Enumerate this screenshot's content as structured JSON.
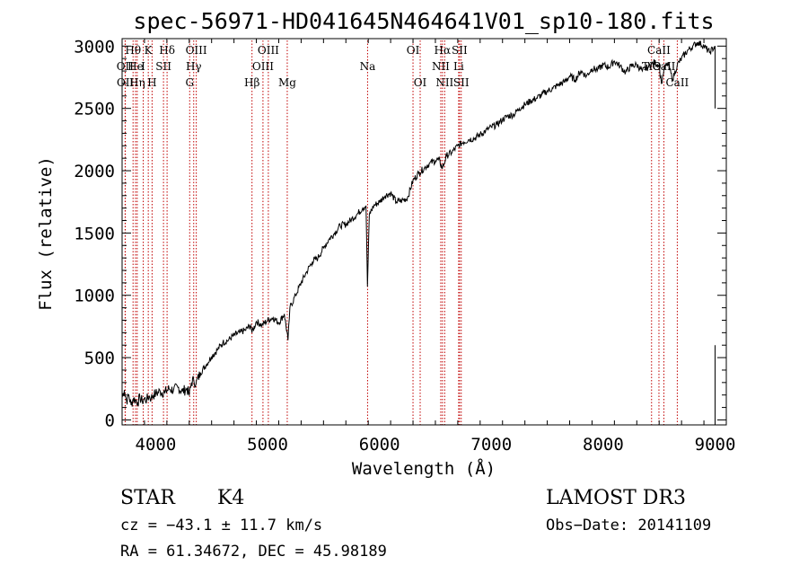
{
  "chart_data": {
    "type": "line",
    "title": "spec-56971-HD041645N464641V01_sp10-180.fits",
    "xlabel": "Wavelength (Å)",
    "ylabel": "Flux (relative)",
    "xlim": [
      3700,
      9100
    ],
    "ylim": [
      -40,
      3060
    ],
    "xticks": [
      4000,
      5000,
      6000,
      7000,
      8000,
      9000
    ],
    "yticks": [
      0,
      500,
      1000,
      1500,
      2000,
      2500,
      3000
    ],
    "series": [
      {
        "name": "spectrum",
        "x": [
          3700,
          3720,
          3740,
          3760,
          3780,
          3800,
          3820,
          3840,
          3860,
          3880,
          3900,
          3920,
          3940,
          3960,
          3980,
          4000,
          4040,
          4080,
          4120,
          4160,
          4200,
          4240,
          4280,
          4300,
          4320,
          4340,
          4360,
          4400,
          4450,
          4500,
          4550,
          4600,
          4650,
          4700,
          4750,
          4800,
          4850,
          4861,
          4900,
          4950,
          5000,
          5050,
          5100,
          5150,
          5183,
          5200,
          5250,
          5300,
          5350,
          5400,
          5450,
          5500,
          5550,
          5600,
          5650,
          5700,
          5750,
          5800,
          5850,
          5880,
          5893,
          5910,
          5950,
          6000,
          6050,
          6100,
          6150,
          6200,
          6250,
          6300,
          6350,
          6400,
          6450,
          6500,
          6530,
          6563,
          6600,
          6650,
          6700,
          6750,
          6800,
          6850,
          6900,
          6950,
          7000,
          7050,
          7100,
          7150,
          7200,
          7250,
          7300,
          7350,
          7400,
          7450,
          7500,
          7550,
          7600,
          7650,
          7700,
          7750,
          7800,
          7850,
          7900,
          7950,
          8000,
          8050,
          8100,
          8150,
          8200,
          8250,
          8300,
          8350,
          8400,
          8450,
          8498,
          8520,
          8542,
          8580,
          8620,
          8662,
          8700,
          8750,
          8800,
          8850,
          8900,
          8950,
          9000,
          9000
        ],
        "values": [
          180,
          240,
          150,
          200,
          120,
          170,
          160,
          140,
          180,
          150,
          170,
          160,
          190,
          175,
          200,
          210,
          230,
          220,
          250,
          240,
          260,
          230,
          250,
          200,
          300,
          320,
          290,
          380,
          440,
          510,
          560,
          620,
          640,
          680,
          700,
          720,
          760,
          700,
          790,
          760,
          800,
          820,
          780,
          850,
          640,
          900,
          1000,
          1100,
          1190,
          1270,
          1300,
          1380,
          1450,
          1500,
          1560,
          1570,
          1610,
          1650,
          1700,
          1720,
          1070,
          1650,
          1720,
          1750,
          1800,
          1820,
          1750,
          1760,
          1780,
          1920,
          1980,
          2020,
          2060,
          2080,
          2090,
          2020,
          2120,
          2150,
          2200,
          2230,
          2250,
          2260,
          2290,
          2320,
          2350,
          2370,
          2410,
          2440,
          2450,
          2500,
          2530,
          2560,
          2580,
          2610,
          2640,
          2660,
          2690,
          2710,
          2760,
          2730,
          2800,
          2760,
          2820,
          2810,
          2850,
          2830,
          2880,
          2840,
          2790,
          2840,
          2850,
          2800,
          2830,
          2870,
          2850,
          2700,
          2810,
          2860,
          2730,
          2850,
          2900,
          2960,
          3000,
          3030,
          3000,
          2950,
          3000,
          2500
        ]
      }
    ],
    "lines": [
      {
        "name": "Hθ",
        "wave": 3798,
        "row": 0
      },
      {
        "name": "OII",
        "wave": 3727,
        "row": 1
      },
      {
        "name": "OII",
        "wave": 3729,
        "row": 2
      },
      {
        "name": "He",
        "wave": 3820,
        "row": 1
      },
      {
        "name": "Hη",
        "wave": 3835,
        "row": 2
      },
      {
        "name": "K",
        "wave": 3934,
        "row": 0
      },
      {
        "name": "H",
        "wave": 3968,
        "row": 2
      },
      {
        "name": "I",
        "wave": 3889,
        "row": 1
      },
      {
        "name": "SII",
        "wave": 4070,
        "row": 1
      },
      {
        "name": "Hδ",
        "wave": 4102,
        "row": 0
      },
      {
        "name": "OIII",
        "wave": 4363,
        "row": 0
      },
      {
        "name": "Hγ",
        "wave": 4340,
        "row": 1
      },
      {
        "name": "G",
        "wave": 4304,
        "row": 2
      },
      {
        "name": "Hβ",
        "wave": 4861,
        "row": 2
      },
      {
        "name": "OIII",
        "wave": 4959,
        "row": 1
      },
      {
        "name": "OIII",
        "wave": 5007,
        "row": 0
      },
      {
        "name": "Mg",
        "wave": 5176,
        "row": 2
      },
      {
        "name": "Na",
        "wave": 5894,
        "row": 1
      },
      {
        "name": "OI",
        "wave": 6300,
        "row": 0
      },
      {
        "name": "OI",
        "wave": 6364,
        "row": 2
      },
      {
        "name": "Hα",
        "wave": 6563,
        "row": 0
      },
      {
        "name": "NII",
        "wave": 6548,
        "row": 1
      },
      {
        "name": "NII",
        "wave": 6583,
        "row": 2
      },
      {
        "name": "SII",
        "wave": 6716,
        "row": 0
      },
      {
        "name": "Li",
        "wave": 6708,
        "row": 1
      },
      {
        "name": "SII",
        "wave": 6731,
        "row": 2
      },
      {
        "name": "CaII",
        "wave": 8498,
        "row": 0
      },
      {
        "name": "TiO",
        "wave": 8432,
        "row": 1
      },
      {
        "name": "CaII",
        "wave": 8542,
        "row": 1
      },
      {
        "name": "CaII",
        "wave": 8662,
        "row": 2
      }
    ]
  },
  "info": {
    "object_class": "STAR",
    "subclass": "K4",
    "survey": "LAMOST DR3",
    "cz": "cz = −43.1 ± 11.7 km/s",
    "obs_date": "Obs−Date: 20141109",
    "coords": "RA =  61.34672, DEC =  45.98189"
  }
}
